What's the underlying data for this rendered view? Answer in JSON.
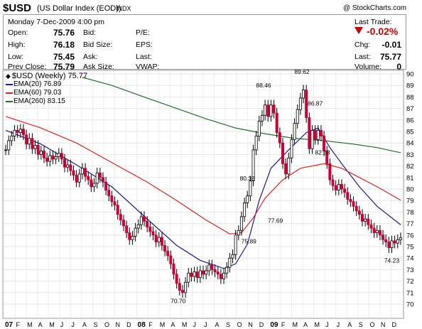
{
  "header": {
    "symbol": "$USD",
    "name": "(US Dollar Index (EOD))",
    "exchange": "INDX",
    "copyright": "@ StockCharts.com"
  },
  "quote": {
    "date": "Monday  7-Dec-2009  4:00 pm",
    "open_label": "Open:",
    "open": "75.76",
    "high_label": "High:",
    "high": "76.18",
    "low_label": "Low:",
    "low": "75.45",
    "prev_label": "Prev Close:",
    "prev": "75.79",
    "bid_label": "Bid:",
    "bidsize_label": "Bid Size:",
    "ask_label": "Ask:",
    "asksize_label": "Ask Size:",
    "pe_label": "P/E:",
    "eps_label": "EPS:",
    "last_label": "Last:",
    "vwap_label": "VWAP:",
    "last_trade_label": "Last Trade:",
    "change_pct": "-0.02%",
    "chg_label": "Chg:",
    "chg": "-0.01",
    "last_label2": "Last:",
    "last": "75.77",
    "volume_label": "Volume:",
    "volume": "0",
    "down_color": "#cc0000"
  },
  "legend": {
    "title": "$USD (Weekly) 75.77",
    "items": [
      {
        "label": "EMA(20) 76.89",
        "color": "#1a1a99"
      },
      {
        "label": "EMA(60) 79.03",
        "color": "#dd2222"
      },
      {
        "label": "EMA(260) 83.15",
        "color": "#207020"
      }
    ]
  },
  "chart_data": {
    "type": "line",
    "title": "$USD (Weekly) 75.77",
    "ylim": [
      70,
      90
    ],
    "yticks": [
      70,
      71,
      72,
      73,
      74,
      75,
      76,
      77,
      78,
      79,
      80,
      81,
      82,
      83,
      84,
      85,
      86,
      87,
      88,
      89,
      90
    ],
    "x_months": [
      "07",
      "F",
      "M",
      "A",
      "M",
      "J",
      "J",
      "A",
      "S",
      "O",
      "N",
      "D",
      "08",
      "F",
      "M",
      "A",
      "M",
      "J",
      "J",
      "A",
      "S",
      "O",
      "N",
      "D",
      "09",
      "F",
      "M",
      "A",
      "M",
      "J",
      "J",
      "A",
      "S",
      "O",
      "N",
      "D"
    ],
    "x_bold": [
      "07",
      "08",
      "09"
    ],
    "price": [
      [
        0,
        83.4
      ],
      [
        1,
        84.2
      ],
      [
        2,
        84.6
      ],
      [
        3,
        85.1
      ],
      [
        4,
        84.9
      ],
      [
        5,
        85.2
      ],
      [
        6,
        84.7
      ],
      [
        7,
        83.9
      ],
      [
        8,
        84.4
      ],
      [
        9,
        83.5
      ],
      [
        10,
        83.8
      ],
      [
        11,
        83.0
      ],
      [
        12,
        83.3
      ],
      [
        13,
        82.7
      ],
      [
        14,
        82.4
      ],
      [
        15,
        82.9
      ],
      [
        16,
        82.6
      ],
      [
        17,
        82.8
      ],
      [
        18,
        83.1
      ],
      [
        19,
        82.6
      ],
      [
        20,
        81.9
      ],
      [
        21,
        82.1
      ],
      [
        22,
        81.6
      ],
      [
        23,
        81.2
      ],
      [
        24,
        80.6
      ],
      [
        25,
        81.3
      ],
      [
        26,
        81.8
      ],
      [
        27,
        81.1
      ],
      [
        28,
        80.8
      ],
      [
        29,
        80.2
      ],
      [
        30,
        80.5
      ],
      [
        31,
        81.4
      ],
      [
        32,
        81.0
      ],
      [
        33,
        80.6
      ],
      [
        34,
        79.9
      ],
      [
        35,
        79.4
      ],
      [
        36,
        78.9
      ],
      [
        37,
        78.6
      ],
      [
        38,
        77.8
      ],
      [
        39,
        77.3
      ],
      [
        40,
        76.8
      ],
      [
        41,
        76.2
      ],
      [
        42,
        75.6
      ],
      [
        43,
        75.9
      ],
      [
        44,
        76.6
      ],
      [
        45,
        76.9
      ],
      [
        46,
        77.6
      ],
      [
        47,
        77.2
      ],
      [
        48,
        76.7
      ],
      [
        49,
        76.3
      ],
      [
        50,
        76.0
      ],
      [
        51,
        75.4
      ],
      [
        52,
        75.8
      ],
      [
        53,
        75.1
      ],
      [
        54,
        74.6
      ],
      [
        55,
        74.2
      ],
      [
        56,
        73.5
      ],
      [
        57,
        72.6
      ],
      [
        58,
        71.8
      ],
      [
        59,
        71.2
      ],
      [
        60,
        71.0
      ],
      [
        61,
        71.9
      ],
      [
        62,
        72.7
      ],
      [
        63,
        72.4
      ],
      [
        64,
        72.8
      ],
      [
        65,
        72.3
      ],
      [
        66,
        72.9
      ],
      [
        67,
        72.6
      ],
      [
        68,
        72.9
      ],
      [
        69,
        73.4
      ],
      [
        70,
        73.0
      ],
      [
        71,
        72.8
      ],
      [
        72,
        72.6
      ],
      [
        73,
        72.2
      ],
      [
        74,
        72.7
      ],
      [
        75,
        73.2
      ],
      [
        76,
        74.0
      ],
      [
        77,
        74.3
      ],
      [
        78,
        76.0
      ],
      [
        79,
        76.4
      ],
      [
        80,
        77.6
      ],
      [
        81,
        78.8
      ],
      [
        82,
        79.4
      ],
      [
        83,
        80.7
      ],
      [
        84,
        83.4
      ],
      [
        85,
        84.6
      ],
      [
        86,
        85.9
      ],
      [
        87,
        86.4
      ],
      [
        88,
        87.3
      ],
      [
        89,
        86.3
      ],
      [
        90,
        87.3
      ],
      [
        91,
        86.6
      ],
      [
        92,
        84.9
      ],
      [
        93,
        84.0
      ],
      [
        94,
        82.2
      ],
      [
        95,
        81.3
      ],
      [
        96,
        82.7
      ],
      [
        97,
        84.3
      ],
      [
        98,
        85.7
      ],
      [
        99,
        86.9
      ],
      [
        100,
        87.9
      ],
      [
        101,
        88.6
      ],
      [
        102,
        86.2
      ],
      [
        103,
        83.5
      ],
      [
        104,
        85.1
      ],
      [
        105,
        84.3
      ],
      [
        106,
        85.1
      ],
      [
        107,
        84.6
      ],
      [
        108,
        83.3
      ],
      [
        109,
        82.2
      ],
      [
        110,
        80.8
      ],
      [
        111,
        80.3
      ],
      [
        112,
        79.9
      ],
      [
        113,
        80.4
      ],
      [
        114,
        80.0
      ],
      [
        115,
        79.7
      ],
      [
        116,
        79.1
      ],
      [
        117,
        78.9
      ],
      [
        118,
        78.5
      ],
      [
        119,
        78.1
      ],
      [
        120,
        77.8
      ],
      [
        121,
        77.2
      ],
      [
        122,
        77.4
      ],
      [
        123,
        76.9
      ],
      [
        124,
        76.6
      ],
      [
        125,
        76.2
      ],
      [
        126,
        76.4
      ],
      [
        127,
        76.0
      ],
      [
        128,
        75.6
      ],
      [
        129,
        75.4
      ],
      [
        130,
        74.9
      ],
      [
        131,
        75.5
      ],
      [
        132,
        75.3
      ],
      [
        133,
        75.6
      ],
      [
        134,
        75.77
      ]
    ],
    "series": [
      {
        "name": "EMA(20)",
        "color": "#1a1a99",
        "points": [
          [
            0,
            85.1
          ],
          [
            12,
            83.9
          ],
          [
            24,
            82.1
          ],
          [
            36,
            80.2
          ],
          [
            48,
            77.4
          ],
          [
            58,
            75.1
          ],
          [
            66,
            73.8
          ],
          [
            74,
            73.1
          ],
          [
            78,
            73.5
          ],
          [
            82,
            75.2
          ],
          [
            86,
            79.0
          ],
          [
            90,
            81.8
          ],
          [
            96,
            83.4
          ],
          [
            102,
            84.9
          ],
          [
            106,
            85.3
          ],
          [
            110,
            83.6
          ],
          [
            114,
            82.2
          ],
          [
            120,
            80.2
          ],
          [
            126,
            78.5
          ],
          [
            134,
            76.9
          ]
        ]
      },
      {
        "name": "EMA(60)",
        "color": "#dd2222",
        "points": [
          [
            0,
            86.3
          ],
          [
            12,
            85.3
          ],
          [
            24,
            84.0
          ],
          [
            36,
            82.3
          ],
          [
            48,
            80.6
          ],
          [
            58,
            79.0
          ],
          [
            68,
            77.3
          ],
          [
            76,
            76.1
          ],
          [
            80,
            76.2
          ],
          [
            84,
            77.5
          ],
          [
            88,
            79.2
          ],
          [
            94,
            80.8
          ],
          [
            100,
            81.8
          ],
          [
            108,
            82.2
          ],
          [
            114,
            81.8
          ],
          [
            120,
            81.0
          ],
          [
            126,
            80.2
          ],
          [
            134,
            79.03
          ]
        ]
      },
      {
        "name": "EMA(260)",
        "color": "#207020",
        "points": [
          [
            26,
            89.7
          ],
          [
            36,
            89.0
          ],
          [
            48,
            87.9
          ],
          [
            58,
            87.0
          ],
          [
            68,
            86.1
          ],
          [
            78,
            85.3
          ],
          [
            88,
            84.8
          ],
          [
            98,
            84.4
          ],
          [
            108,
            84.2
          ],
          [
            118,
            83.9
          ],
          [
            126,
            83.6
          ],
          [
            134,
            83.15
          ]
        ]
      }
    ],
    "annotations": [
      {
        "label": "88.46",
        "x": 87.5,
        "y": 88.46,
        "dy": -6
      },
      {
        "label": "89.62",
        "x": 100.5,
        "y": 89.62,
        "dy": -6
      },
      {
        "label": "86.87",
        "x": 105,
        "y": 86.87,
        "dy": -6
      },
      {
        "label": "80.38",
        "x": 82,
        "y": 80.38,
        "dy": -6
      },
      {
        "label": "82.63",
        "x": 107.5,
        "y": 82.63,
        "dy": -6
      },
      {
        "label": "77.69",
        "x": 91.5,
        "y": 77.69,
        "dy": 10
      },
      {
        "label": "75.89",
        "x": 82.5,
        "y": 75.89,
        "dy": 10
      },
      {
        "label": "70.70",
        "x": 58.5,
        "y": 70.7,
        "dy": 10
      },
      {
        "label": "74.23",
        "x": 131,
        "y": 74.23,
        "dy": 10
      }
    ]
  }
}
